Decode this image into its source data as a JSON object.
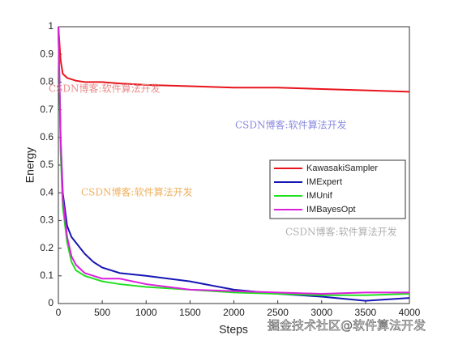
{
  "chart_data": {
    "type": "line",
    "xlabel": "Steps",
    "ylabel": "Energy",
    "x": [
      0,
      25,
      50,
      100,
      150,
      200,
      300,
      400,
      500,
      700,
      1000,
      1500,
      2000,
      2500,
      3000,
      3500,
      4000
    ],
    "series": [
      {
        "name": "KawasakiSampler",
        "color": "#e8141b",
        "values": [
          1,
          0.88,
          0.83,
          0.815,
          0.81,
          0.805,
          0.8,
          0.8,
          0.8,
          0.795,
          0.79,
          0.785,
          0.78,
          0.78,
          0.775,
          0.77,
          0.765
        ]
      },
      {
        "name": "IMExpert",
        "color": "#1616b4",
        "values": [
          1,
          0.6,
          0.4,
          0.28,
          0.24,
          0.22,
          0.18,
          0.15,
          0.13,
          0.11,
          0.1,
          0.08,
          0.05,
          0.035,
          0.025,
          0.01,
          0.02
        ]
      },
      {
        "name": "IMUnif",
        "color": "#22e022",
        "values": [
          1,
          0.55,
          0.35,
          0.22,
          0.15,
          0.12,
          0.1,
          0.09,
          0.08,
          0.07,
          0.06,
          0.05,
          0.04,
          0.035,
          0.03,
          0.03,
          0.035
        ]
      },
      {
        "name": "IMBayesOpt",
        "color": "#dc1fdc",
        "values": [
          1,
          0.6,
          0.38,
          0.24,
          0.17,
          0.14,
          0.11,
          0.1,
          0.09,
          0.09,
          0.07,
          0.05,
          0.045,
          0.04,
          0.035,
          0.04,
          0.04
        ]
      }
    ],
    "xlim": [
      0,
      4000
    ],
    "xticks": [
      0,
      500,
      1000,
      1500,
      2000,
      2500,
      3000,
      3500,
      4000
    ],
    "ylim": [
      0,
      1
    ],
    "yticks": [
      0,
      0.1,
      0.2,
      0.3,
      0.4,
      0.5,
      0.6,
      0.7,
      0.8,
      0.9,
      1
    ],
    "grid": false,
    "legend": "center right",
    "watermarks": [
      {
        "text": "CSDN博客:软件算法开发",
        "color": "#e88a8a"
      },
      {
        "text": "CSDN博客:软件算法开发",
        "color": "#8a8ae0"
      },
      {
        "text": "CSDN博客:软件算法开发",
        "color": "#f0b060"
      },
      {
        "text": "CSDN博客:软件算法开发",
        "color": "#b0b0b0"
      },
      {
        "text": "掘金技术社区@软件算法开发",
        "color": "#ffffff"
      }
    ]
  }
}
